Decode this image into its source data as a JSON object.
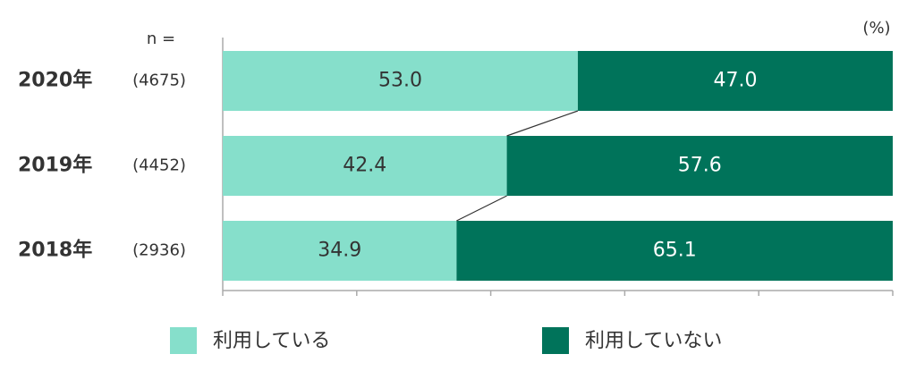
{
  "chart_data": {
    "type": "stacked-bar-horizontal",
    "unit_label": "(%)",
    "n_header": "n =",
    "categories": [
      "2020年",
      "2019年",
      "2018年"
    ],
    "n_labels": [
      "(4675)",
      "(4452)",
      "(2936)"
    ],
    "series": [
      {
        "name": "利用している",
        "color": "#86dfcb",
        "values": [
          53.0,
          42.4,
          34.9
        ],
        "value_labels": [
          "53.0",
          "42.4",
          "34.9"
        ]
      },
      {
        "name": "利用していない",
        "color": "#00735a",
        "values": [
          47.0,
          57.6,
          65.1
        ],
        "value_labels": [
          "47.0",
          "57.6",
          "65.1"
        ]
      }
    ],
    "xlim": [
      0,
      100
    ],
    "xticks": [
      0,
      20,
      40,
      60,
      80,
      100
    ],
    "connector_lines": true,
    "legend": "bottom"
  }
}
